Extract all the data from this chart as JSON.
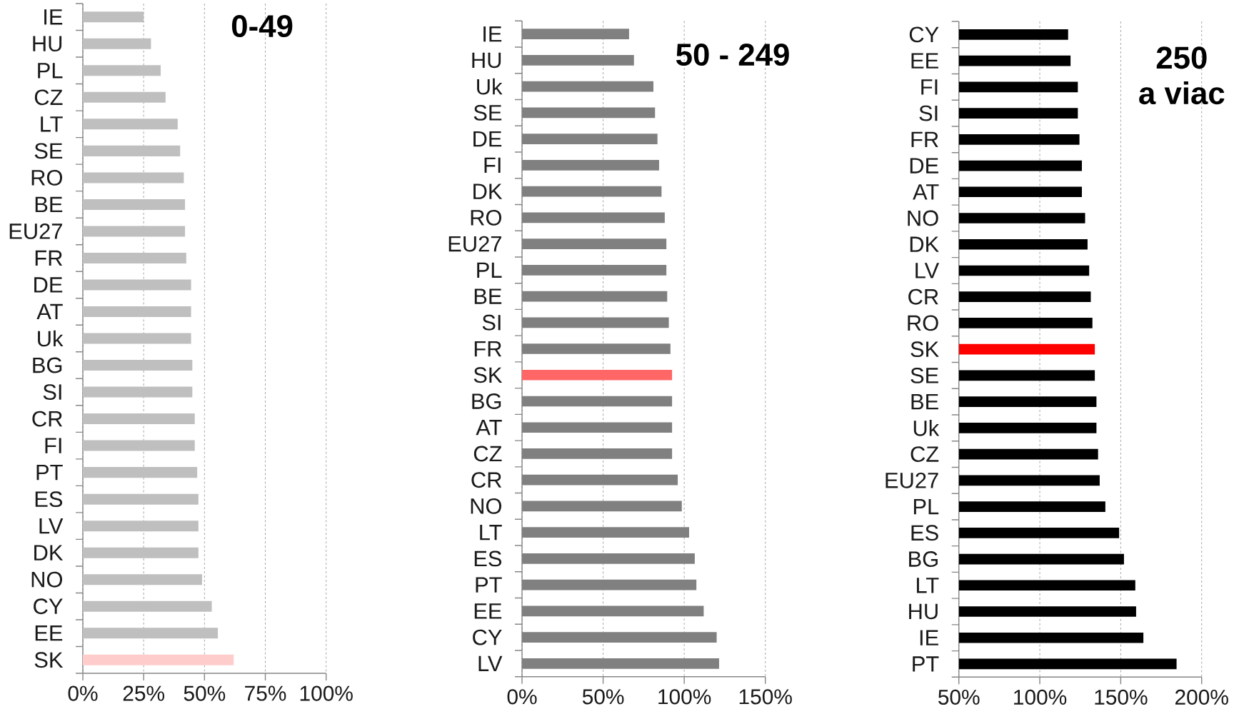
{
  "chart_data": [
    {
      "type": "bar",
      "orientation": "horizontal",
      "title": "0-49",
      "categories": [
        "IE",
        "HU",
        "PL",
        "CZ",
        "LT",
        "SE",
        "RO",
        "BE",
        "EU27",
        "FR",
        "DE",
        "AT",
        "Uk",
        "BG",
        "SI",
        "CR",
        "FI",
        "PT",
        "ES",
        "LV",
        "DK",
        "NO",
        "CY",
        "EE",
        "SK"
      ],
      "values": [
        25,
        28,
        32,
        34,
        39,
        40,
        41.5,
        42,
        42,
        42.5,
        44.5,
        44.5,
        44.5,
        45,
        45,
        46,
        46,
        47,
        47.5,
        47.5,
        47.5,
        49,
        53,
        55.5,
        62
      ],
      "colors": [
        "#bfbfbf",
        "#bfbfbf",
        "#bfbfbf",
        "#bfbfbf",
        "#bfbfbf",
        "#bfbfbf",
        "#bfbfbf",
        "#bfbfbf",
        "#bfbfbf",
        "#bfbfbf",
        "#bfbfbf",
        "#bfbfbf",
        "#bfbfbf",
        "#bfbfbf",
        "#bfbfbf",
        "#bfbfbf",
        "#bfbfbf",
        "#bfbfbf",
        "#bfbfbf",
        "#bfbfbf",
        "#bfbfbf",
        "#bfbfbf",
        "#bfbfbf",
        "#bfbfbf",
        "#ffcccc"
      ],
      "xlim": [
        0,
        100
      ],
      "xticks": [
        {
          "value": 0,
          "label": "0%"
        },
        {
          "value": 25,
          "label": "25%"
        },
        {
          "value": 50,
          "label": "50%"
        },
        {
          "value": 75,
          "label": "75%"
        },
        {
          "value": 100,
          "label": "100%"
        }
      ],
      "grid": "x"
    },
    {
      "type": "bar",
      "orientation": "horizontal",
      "title": "50 - 249",
      "categories": [
        "IE",
        "HU",
        "Uk",
        "SE",
        "DE",
        "FI",
        "DK",
        "RO",
        "EU27",
        "PL",
        "BE",
        "SI",
        "FR",
        "SK",
        "BG",
        "AT",
        "CZ",
        "CR",
        "NO",
        "LT",
        "ES",
        "PT",
        "EE",
        "CY",
        "LV"
      ],
      "values": [
        66,
        69,
        81,
        82,
        83.5,
        84.5,
        86,
        88,
        89,
        89,
        89.5,
        90.5,
        91.5,
        92.5,
        92.5,
        92.5,
        92.5,
        96,
        98.5,
        103,
        106.5,
        107.5,
        112,
        120,
        121.5
      ],
      "colors": [
        "#808080",
        "#808080",
        "#808080",
        "#808080",
        "#808080",
        "#808080",
        "#808080",
        "#808080",
        "#808080",
        "#808080",
        "#808080",
        "#808080",
        "#808080",
        "#ff6666",
        "#808080",
        "#808080",
        "#808080",
        "#808080",
        "#808080",
        "#808080",
        "#808080",
        "#808080",
        "#808080",
        "#808080",
        "#808080"
      ],
      "xlim": [
        0,
        150
      ],
      "xticks": [
        {
          "value": 0,
          "label": "0%"
        },
        {
          "value": 50,
          "label": "50%"
        },
        {
          "value": 100,
          "label": "100%"
        },
        {
          "value": 150,
          "label": "150%"
        }
      ],
      "grid": "x"
    },
    {
      "type": "bar",
      "orientation": "horizontal",
      "title": "250",
      "subtitle": "a viac",
      "categories": [
        "CY",
        "EE",
        "FI",
        "SI",
        "FR",
        "DE",
        "AT",
        "NO",
        "DK",
        "LV",
        "CR",
        "RO",
        "SK",
        "SE",
        "BE",
        "Uk",
        "CZ",
        "EU27",
        "PL",
        "ES",
        "BG",
        "LT",
        "HU",
        "IE",
        "PT"
      ],
      "values": [
        117.5,
        119,
        123.5,
        123.5,
        124.5,
        126,
        126,
        128,
        129.5,
        130.5,
        131.5,
        132.5,
        134,
        134,
        135,
        135,
        136,
        137,
        140.5,
        149,
        152,
        159,
        159.5,
        164,
        184.5
      ],
      "colors": [
        "#000000",
        "#000000",
        "#000000",
        "#000000",
        "#000000",
        "#000000",
        "#000000",
        "#000000",
        "#000000",
        "#000000",
        "#000000",
        "#000000",
        "#ff0000",
        "#000000",
        "#000000",
        "#000000",
        "#000000",
        "#000000",
        "#000000",
        "#000000",
        "#000000",
        "#000000",
        "#000000",
        "#000000",
        "#000000"
      ],
      "xlim": [
        50,
        200
      ],
      "xticks": [
        {
          "value": 50,
          "label": "50%"
        },
        {
          "value": 100,
          "label": "100%"
        },
        {
          "value": 150,
          "label": "150%"
        },
        {
          "value": 200,
          "label": "200%"
        }
      ],
      "grid": "x"
    }
  ]
}
